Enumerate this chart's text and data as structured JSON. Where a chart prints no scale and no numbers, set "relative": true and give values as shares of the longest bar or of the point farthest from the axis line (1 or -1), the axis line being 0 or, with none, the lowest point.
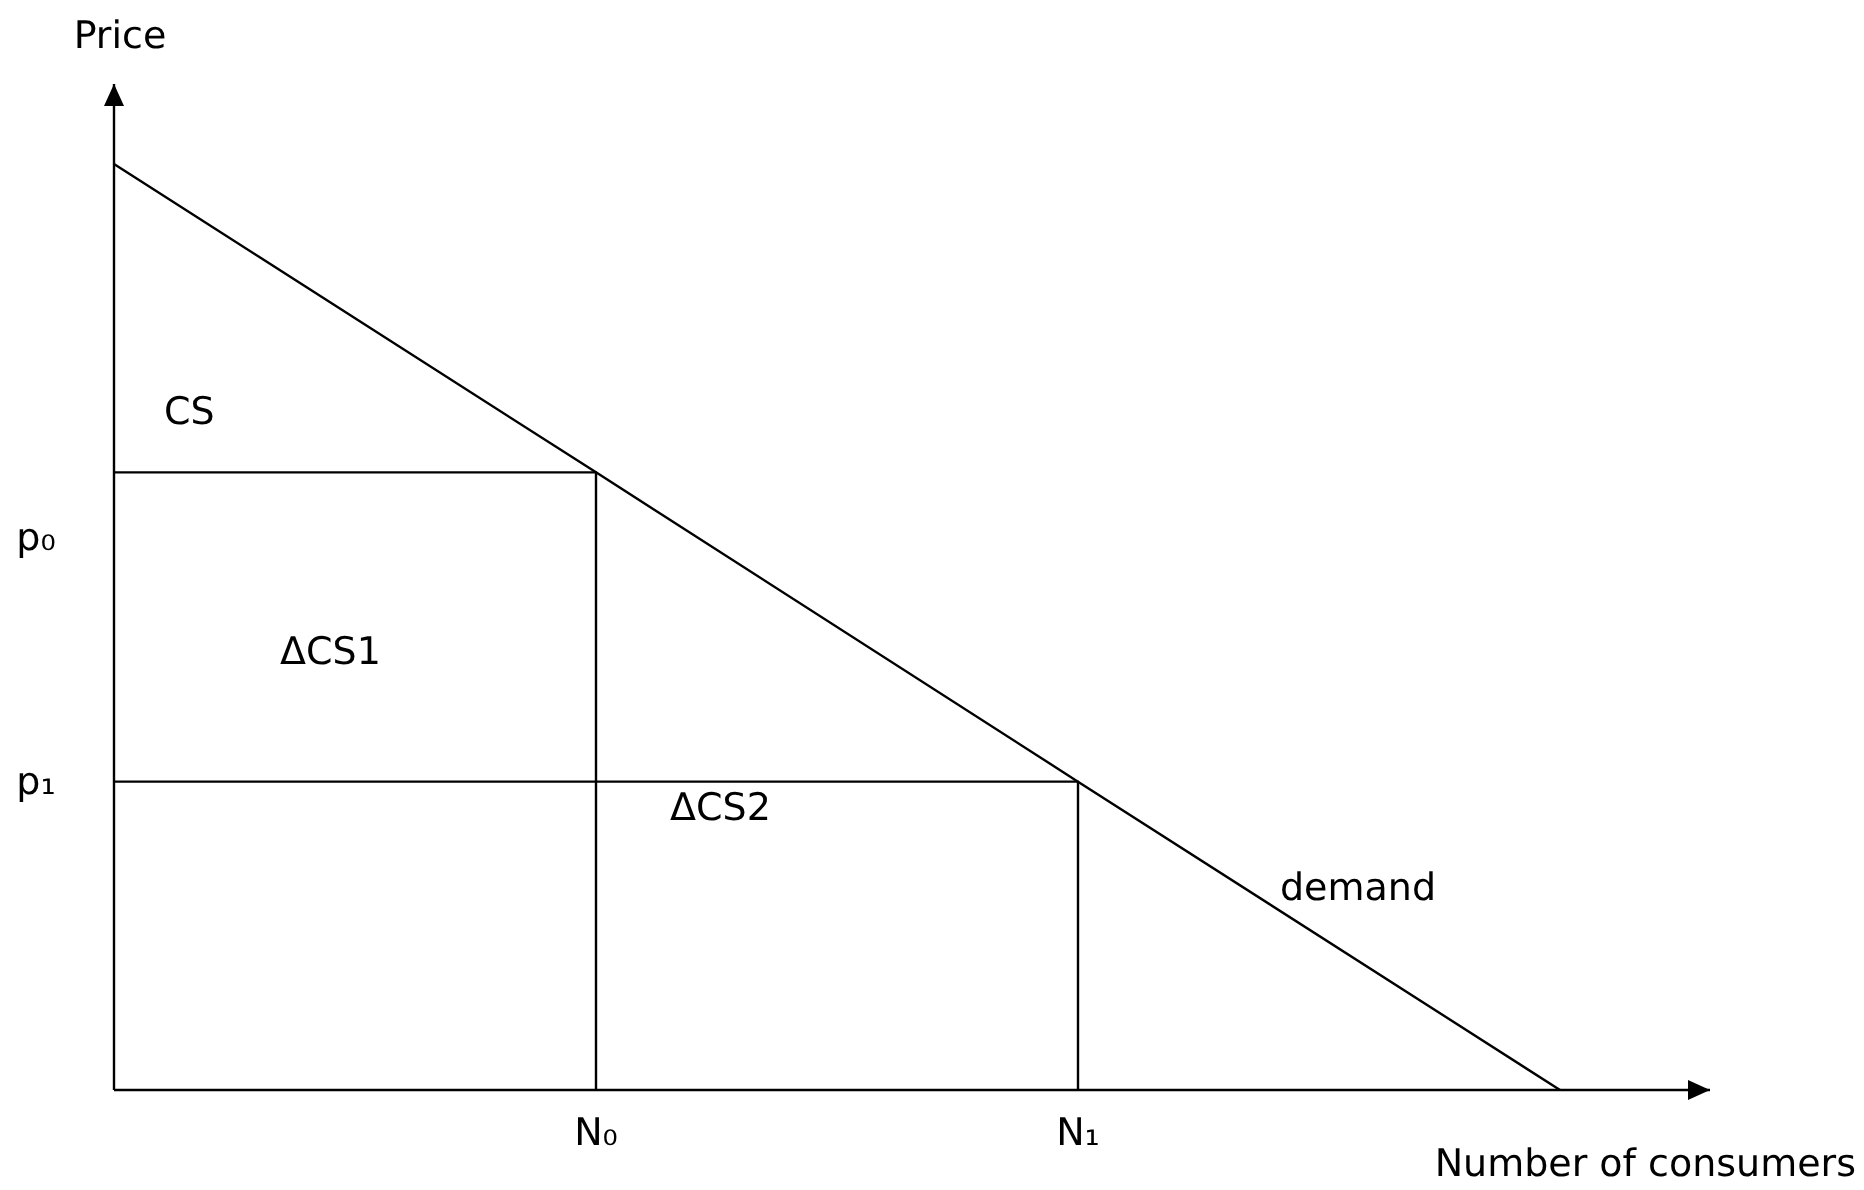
{
  "chart_data": {
    "type": "line",
    "xlabel": "Number of consumers",
    "ylabel": "Price",
    "categories": [
      null,
      "N₀",
      "N₁",
      null
    ],
    "relative": true,
    "series": [
      {
        "color": "#000000",
        "values": [
          1,
          0.667,
          0.333,
          0
        ]
      },
      {
        "type": "step",
        "color": "#000000",
        "values": [
          0.667,
          0,
          null,
          null
        ]
      },
      {
        "type": "step",
        "color": "#000000",
        "values": [
          0.333,
          0.333,
          0,
          null
        ]
      }
    ],
    "annotations": [
      "p₀",
      "p₁",
      "CS",
      "ΔCS1",
      "ΔCS2",
      "demand"
    ]
  }
}
